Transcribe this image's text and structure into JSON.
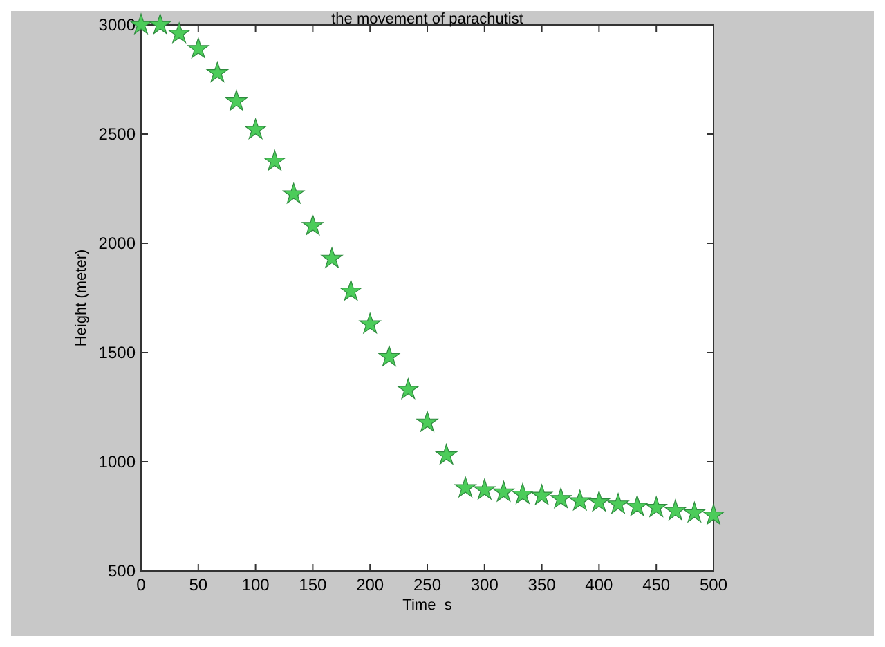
{
  "chart_data": {
    "type": "scatter",
    "title": "the movement of parachutist",
    "xlabel": "Time  s",
    "ylabel": "Height (meter)",
    "x": [
      0,
      16.7,
      33.3,
      50,
      66.7,
      83.3,
      100,
      116.7,
      133.3,
      150,
      166.7,
      183.3,
      200,
      216.7,
      233.3,
      250,
      266.7,
      283.3,
      300,
      316.7,
      333.3,
      350,
      366.7,
      383.3,
      400,
      416.7,
      433.3,
      450,
      466.7,
      483.3,
      500
    ],
    "series": [
      {
        "color": "#4ccc5a",
        "values": [
          3000,
          3000,
          2960,
          2890,
          2780,
          2650,
          2520,
          2375,
          2225,
          2080,
          1930,
          1780,
          1630,
          1480,
          1330,
          1180,
          1030,
          880,
          870,
          860,
          850,
          845,
          830,
          820,
          815,
          805,
          795,
          790,
          775,
          765,
          755
        ]
      }
    ],
    "xlim": [
      0,
      500
    ],
    "xticks": [
      0,
      50,
      100,
      150,
      200,
      250,
      300,
      350,
      400,
      450,
      500
    ],
    "ylim": [
      500,
      3000
    ],
    "yticks": [
      500,
      1000,
      1500,
      2000,
      2500,
      3000
    ],
    "marker": "star",
    "grid": false
  }
}
